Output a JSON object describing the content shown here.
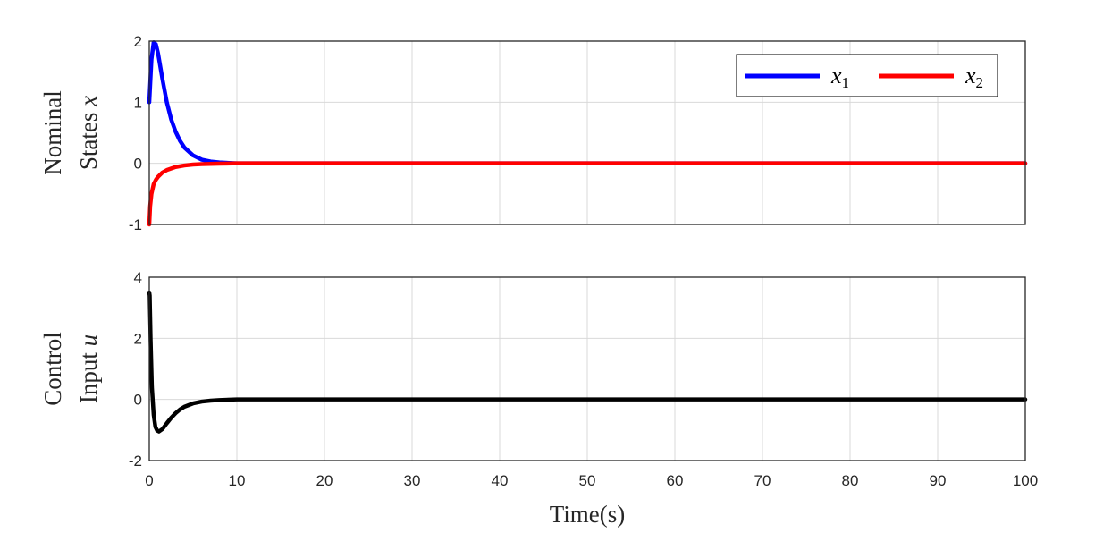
{
  "chart_data": [
    {
      "type": "line",
      "ylabel": {
        "line1": "Nominal",
        "line2": "States ",
        "symbol": "x"
      },
      "xlim": [
        0,
        100
      ],
      "ylim": [
        -1,
        2
      ],
      "yticks": [
        -1,
        0,
        1,
        2
      ],
      "xticks": [
        0,
        10,
        20,
        30,
        40,
        50,
        60,
        70,
        80,
        90,
        100
      ],
      "grid": true,
      "legend": {
        "placement": "top-right",
        "orientation": "horizontal"
      },
      "series": [
        {
          "name": "x1",
          "symbol": "x",
          "subscript": "1",
          "color": "#0000ff",
          "x": [
            0,
            0.25,
            0.5,
            0.75,
            1,
            1.5,
            2,
            2.5,
            3,
            3.5,
            4,
            5,
            6,
            7,
            8,
            10,
            15,
            100
          ],
          "y": [
            1.0,
            1.7,
            1.98,
            1.95,
            1.8,
            1.38,
            1.0,
            0.72,
            0.52,
            0.37,
            0.26,
            0.13,
            0.06,
            0.03,
            0.015,
            0.0,
            0.0,
            0.0
          ]
        },
        {
          "name": "x2",
          "symbol": "x",
          "subscript": "2",
          "color": "#ff0000",
          "x": [
            0,
            0.1,
            0.25,
            0.5,
            0.75,
            1,
            1.5,
            2,
            3,
            4,
            5,
            6,
            8,
            10,
            15,
            100
          ],
          "y": [
            -1.0,
            -0.7,
            -0.5,
            -0.34,
            -0.27,
            -0.22,
            -0.15,
            -0.11,
            -0.06,
            -0.035,
            -0.02,
            -0.012,
            -0.005,
            0.0,
            0.0,
            0.0
          ]
        }
      ]
    },
    {
      "type": "line",
      "ylabel": {
        "line1": "Control",
        "line2": "Input ",
        "symbol": "u"
      },
      "xlim": [
        0,
        100
      ],
      "ylim": [
        -2,
        4
      ],
      "yticks": [
        -2,
        0,
        2,
        4
      ],
      "xticks": [
        0,
        10,
        20,
        30,
        40,
        50,
        60,
        70,
        80,
        90,
        100
      ],
      "xlabel": "Time(s)",
      "grid": true,
      "series": [
        {
          "name": "u",
          "color": "#000000",
          "x": [
            0,
            0.05,
            0.15,
            0.3,
            0.5,
            0.7,
            0.9,
            1.1,
            1.5,
            2,
            2.5,
            3,
            3.5,
            4,
            5,
            6,
            7,
            8,
            10,
            15,
            100
          ],
          "y": [
            3.5,
            3.4,
            2.0,
            0.4,
            -0.5,
            -0.9,
            -1.02,
            -1.05,
            -0.97,
            -0.78,
            -0.6,
            -0.45,
            -0.33,
            -0.24,
            -0.13,
            -0.07,
            -0.04,
            -0.02,
            0.0,
            0.0,
            0.0
          ]
        }
      ]
    }
  ]
}
